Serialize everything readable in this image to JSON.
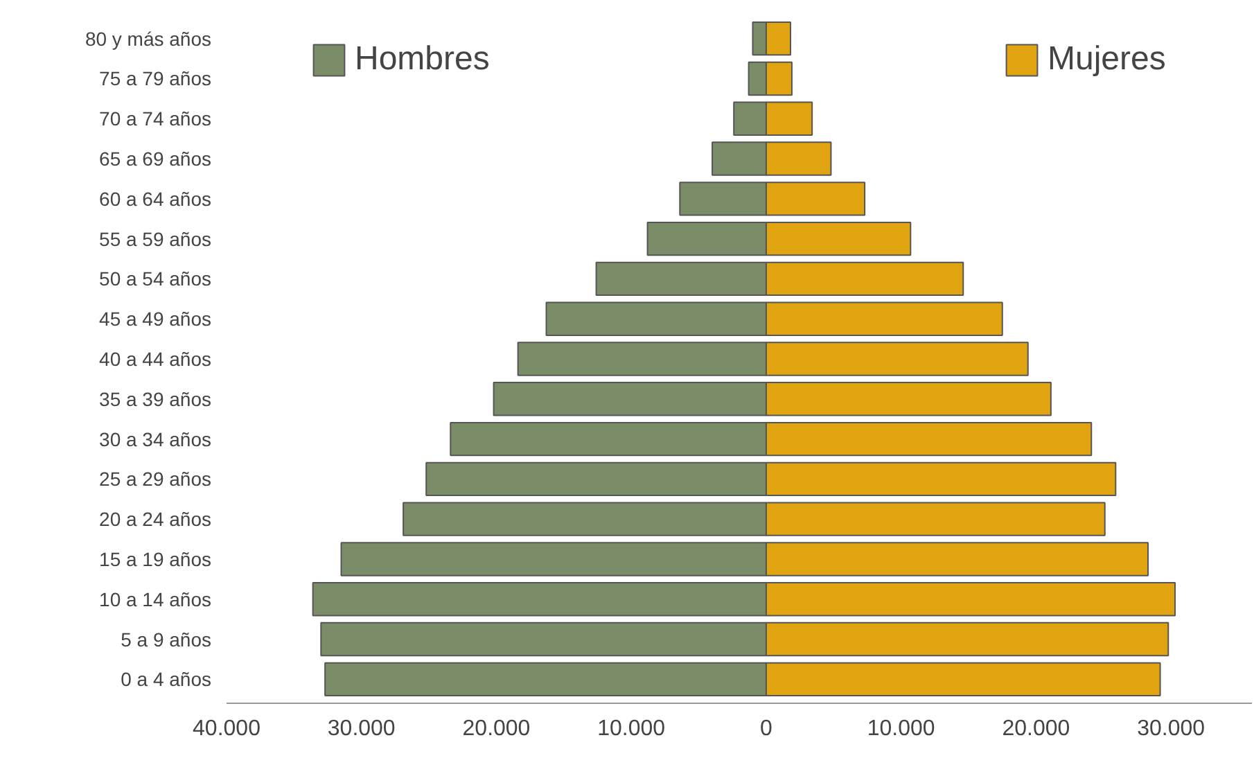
{
  "chart_data": {
    "type": "bar",
    "orientation": "horizontal",
    "categories": [
      "80 y más años",
      "75 a 79 años",
      "70 a 74 años",
      "65 a 69 años",
      "60 a 64 años",
      "55 a 59 años",
      "50 a 54 años",
      "45 a 49 años",
      "40 a 44 años",
      "35 a 39 años",
      "30 a 34 años",
      "25 a 29 años",
      "20 a 24 años",
      "15 a 19 años",
      "10 a 14 años",
      "5 a 9 años",
      "0 a 4 años"
    ],
    "series": [
      {
        "name": "Hombres",
        "color": "#7a8c68",
        "values": [
          -1000,
          -1300,
          -2400,
          -4000,
          -6400,
          -8800,
          -12600,
          -16300,
          -18400,
          -20200,
          -23400,
          -25200,
          -26900,
          -31500,
          -33600,
          -33000,
          -32700
        ]
      },
      {
        "name": "Mujeres",
        "color": "#e0a411",
        "values": [
          1800,
          1900,
          3400,
          4800,
          7300,
          10700,
          14600,
          17500,
          19400,
          21100,
          24100,
          25900,
          25100,
          28300,
          30300,
          29800,
          29200
        ]
      }
    ],
    "xlim": [
      -40000,
      36000
    ],
    "xticks": [
      {
        "value": -40000,
        "label": "40.000"
      },
      {
        "value": -30000,
        "label": "30.000"
      },
      {
        "value": -20000,
        "label": "20.000"
      },
      {
        "value": -10000,
        "label": "10.000"
      },
      0,
      {
        "value": 10000,
        "label": "10.000"
      },
      {
        "value": 20000,
        "label": "20.000"
      },
      {
        "value": 30000,
        "label": "30.000"
      }
    ],
    "stacked": true,
    "grid": false,
    "legend": "top"
  }
}
